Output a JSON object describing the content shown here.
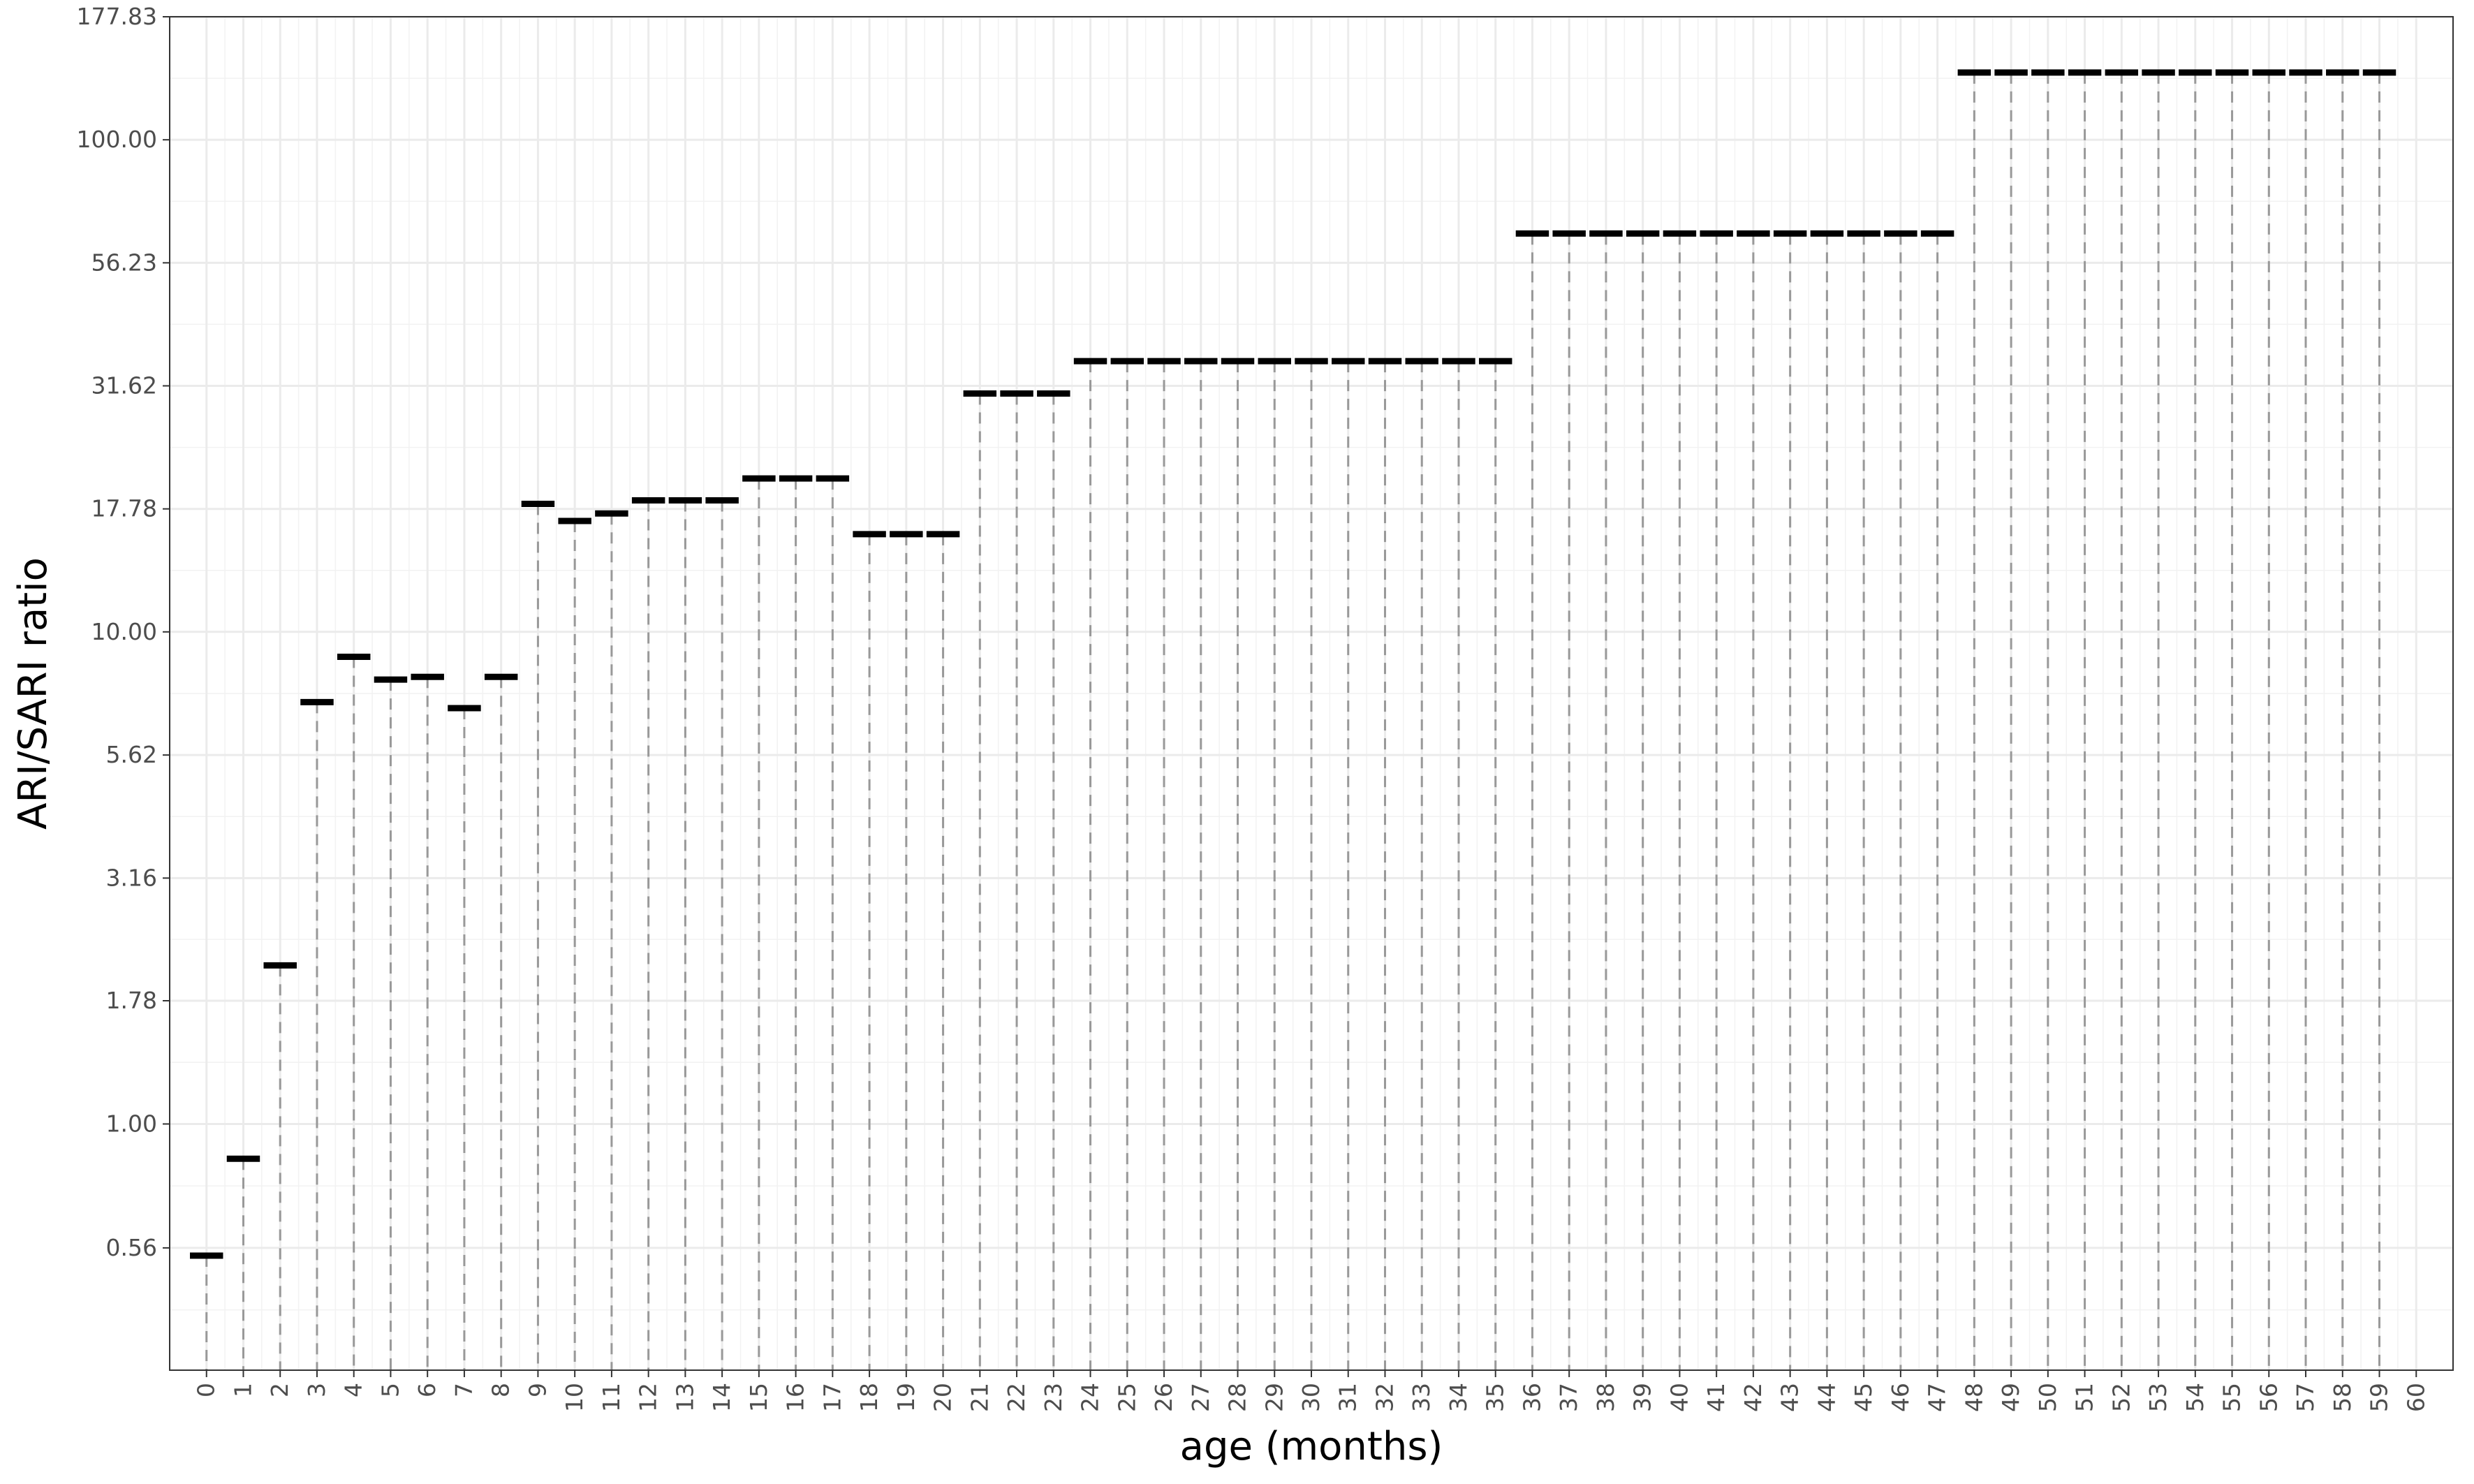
{
  "chart_data": {
    "type": "scatter",
    "title": "",
    "xlabel": "age (months)",
    "ylabel": "ARI/SARI ratio",
    "x_scale": "linear",
    "y_scale": "log10",
    "xlim": [
      -1,
      61
    ],
    "ylim": [
      0.316,
      177.83
    ],
    "grid": true,
    "x_ticks": [
      0,
      1,
      2,
      3,
      4,
      5,
      6,
      7,
      8,
      9,
      10,
      11,
      12,
      13,
      14,
      15,
      16,
      17,
      18,
      19,
      20,
      21,
      22,
      23,
      24,
      25,
      26,
      27,
      28,
      29,
      30,
      31,
      32,
      33,
      34,
      35,
      36,
      37,
      38,
      39,
      40,
      41,
      42,
      43,
      44,
      45,
      46,
      47,
      48,
      49,
      50,
      51,
      52,
      53,
      54,
      55,
      56,
      57,
      58,
      59,
      60
    ],
    "x_tick_labels": [
      "0",
      "1",
      "2",
      "3",
      "4",
      "5",
      "6",
      "7",
      "8",
      "9",
      "10",
      "11",
      "12",
      "13",
      "14",
      "15",
      "16",
      "17",
      "18",
      "19",
      "20",
      "21",
      "22",
      "23",
      "24",
      "25",
      "26",
      "27",
      "28",
      "29",
      "30",
      "31",
      "32",
      "33",
      "34",
      "35",
      "36",
      "37",
      "38",
      "39",
      "40",
      "41",
      "42",
      "43",
      "44",
      "45",
      "46",
      "47",
      "48",
      "49",
      "50",
      "51",
      "52",
      "53",
      "54",
      "55",
      "56",
      "57",
      "58",
      "59",
      "60"
    ],
    "y_ticks": [
      0.56,
      1.0,
      1.78,
      3.16,
      5.62,
      10.0,
      17.78,
      31.62,
      56.23,
      100.0,
      177.83
    ],
    "y_tick_labels": [
      "0.56",
      "1.00",
      "1.78",
      "3.16",
      "5.62",
      "10.00",
      "17.78",
      "31.62",
      "56.23",
      "100.00",
      "177.83"
    ],
    "series": [
      {
        "marker": "horizontal-dash",
        "color": "#000000",
        "drop_line": {
          "style": "dashed",
          "color": "#999999"
        },
        "x": [
          0,
          1,
          2,
          3,
          4,
          5,
          6,
          7,
          8,
          9,
          10,
          11,
          12,
          13,
          14,
          15,
          16,
          17,
          18,
          19,
          20,
          21,
          22,
          23,
          24,
          25,
          26,
          27,
          28,
          29,
          30,
          31,
          32,
          33,
          34,
          35,
          36,
          37,
          38,
          39,
          40,
          41,
          42,
          43,
          44,
          45,
          46,
          47,
          48,
          49,
          50,
          51,
          52,
          53,
          54,
          55,
          56,
          57,
          58,
          59
        ],
        "y": [
          0.54,
          0.85,
          2.1,
          7.2,
          8.9,
          8.0,
          8.1,
          7.0,
          8.1,
          18.2,
          16.8,
          17.4,
          18.5,
          18.5,
          18.5,
          20.5,
          20.5,
          20.5,
          15.8,
          15.8,
          15.8,
          30.5,
          30.5,
          30.5,
          35.5,
          35.5,
          35.5,
          35.5,
          35.5,
          35.5,
          35.5,
          35.5,
          35.5,
          35.5,
          35.5,
          35.5,
          64.5,
          64.5,
          64.5,
          64.5,
          64.5,
          64.5,
          64.5,
          64.5,
          64.5,
          64.5,
          64.5,
          64.5,
          137,
          137,
          137,
          137,
          137,
          137,
          137,
          137,
          137,
          137,
          137,
          137
        ]
      }
    ]
  }
}
